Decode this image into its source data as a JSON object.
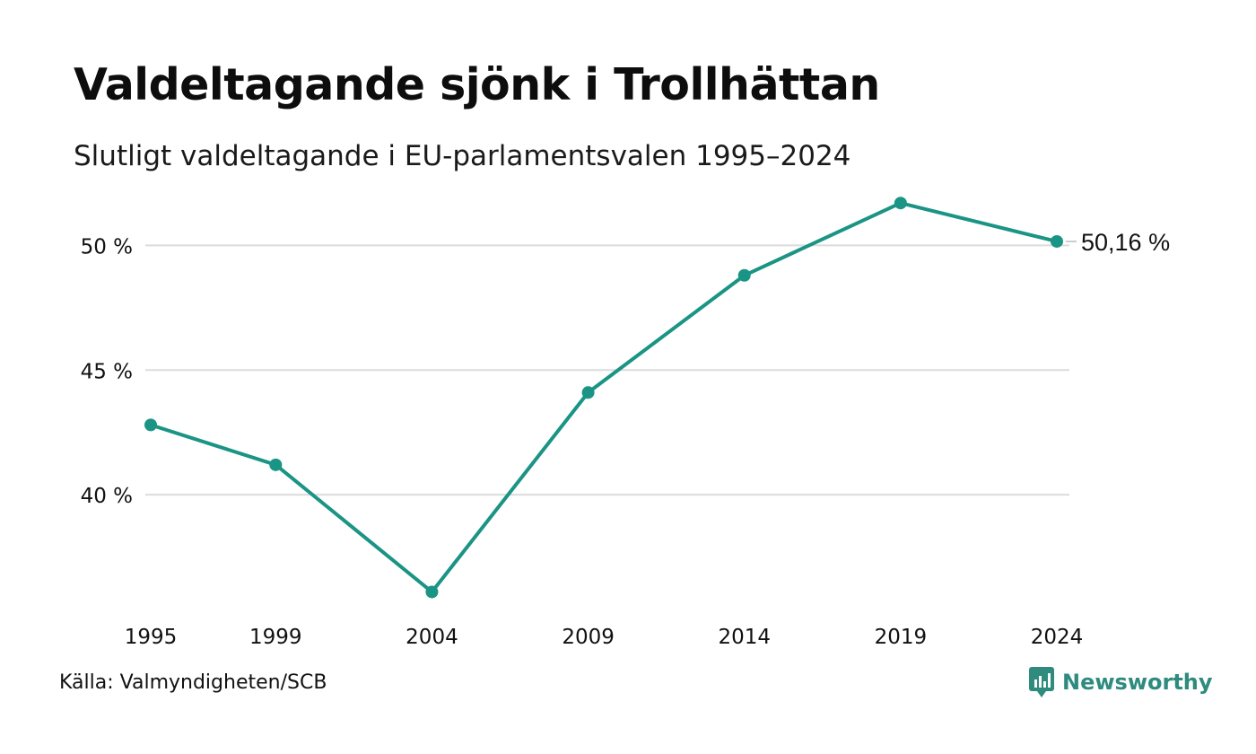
{
  "title": "Valdeltagande sjönk i Trollhättan",
  "subtitle": "Slutligt valdeltagande i EU-parlamentsvalen 1995–2024",
  "source": "Källa: Valmyndigheten/SCB",
  "brand": {
    "name": "Newsworthy",
    "icon": "newsworthy-logo-icon"
  },
  "colors": {
    "line": "#1a9484",
    "grid": "#dcdcdc",
    "text": "#111111",
    "brand": "#2e8b7e"
  },
  "chart_data": {
    "type": "line",
    "title": "Valdeltagande sjönk i Trollhättan",
    "subtitle": "Slutligt valdeltagande i EU-parlamentsvalen 1995–2024",
    "categories": [
      "1995",
      "1999",
      "2004",
      "2009",
      "2014",
      "2019",
      "2024"
    ],
    "x": [
      1995,
      1999,
      2004,
      2009,
      2014,
      2019,
      2024
    ],
    "values": [
      42.8,
      41.2,
      36.1,
      44.1,
      48.8,
      51.7,
      50.16
    ],
    "ylim": [
      35,
      52.5
    ],
    "yticks": [
      40,
      45,
      50
    ],
    "ytick_labels": [
      "40 %",
      "45 %",
      "50 %"
    ],
    "last_label": "50,16 %",
    "grid": "horizontal",
    "legend": "none",
    "xlabel": "",
    "ylabel": ""
  }
}
